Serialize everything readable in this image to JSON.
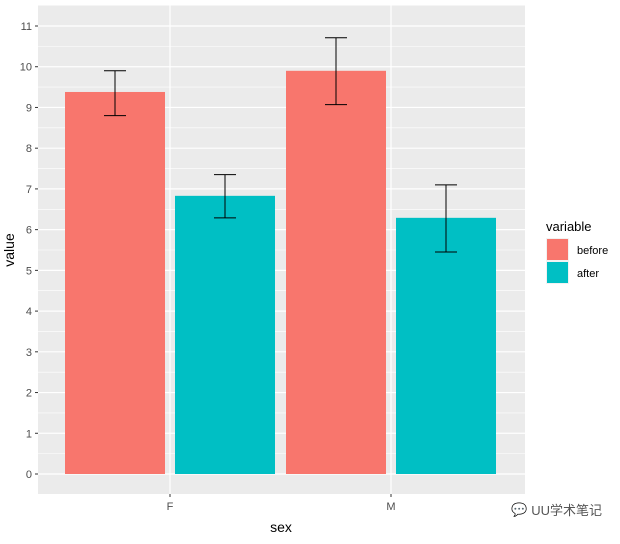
{
  "chart_data": {
    "type": "bar",
    "title": "",
    "xlabel": "sex",
    "ylabel": "value",
    "categories": [
      "F",
      "M"
    ],
    "ylim": [
      -0.5,
      11.5
    ],
    "yticks": [
      "0",
      "1",
      "2",
      "3",
      "4",
      "5",
      "6",
      "7",
      "8",
      "9",
      "10",
      "11"
    ],
    "grid": true,
    "legend": {
      "title": "variable",
      "position": "right"
    },
    "series": [
      {
        "name": "before",
        "color": "#F8766D",
        "values": [
          9.38,
          9.9
        ],
        "error_low": [
          8.8,
          9.07
        ],
        "error_high": [
          9.9,
          10.71
        ]
      },
      {
        "name": "after",
        "color": "#00BFC4",
        "values": [
          6.83,
          6.29
        ],
        "error_low": [
          6.29,
          5.45
        ],
        "error_high": [
          7.35,
          7.1
        ]
      }
    ]
  },
  "watermark": "UU学术笔记"
}
